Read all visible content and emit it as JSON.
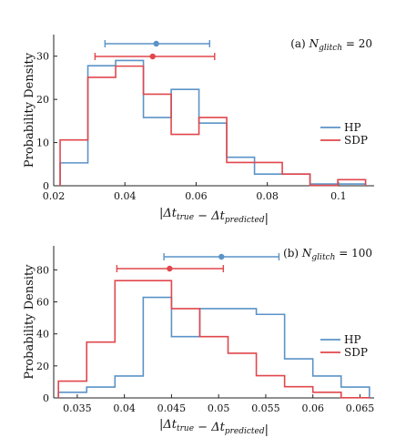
{
  "colors": {
    "HP": "#5b93c7",
    "SDP": "#e0474c"
  },
  "chart_data": [
    {
      "type": "histogram",
      "panel": "a",
      "annotation": "(a) N_glitch = 20",
      "xlabel": "|Δt_true − Δt_predicted|",
      "ylabel": "Probability Density",
      "xlim": [
        0.02,
        0.11
      ],
      "ylim": [
        0,
        35
      ],
      "xticks": [
        0.02,
        0.04,
        0.06,
        0.08,
        0.1
      ],
      "xtick_labels": [
        "0.02",
        "0.04",
        "0.06",
        "0.08",
        "0.1"
      ],
      "yticks": [
        0,
        10,
        20,
        30
      ],
      "ytick_labels": [
        "0",
        "10",
        "20",
        "30"
      ],
      "legend_position": "right",
      "series": [
        {
          "name": "HP",
          "edges": [
            0.0218,
            0.0296,
            0.0374,
            0.0452,
            0.053,
            0.0608,
            0.0686,
            0.0764,
            0.0842,
            0.092,
            0.0998,
            0.1076
          ],
          "values": [
            5.3,
            27.8,
            29.0,
            15.8,
            22.3,
            14.5,
            6.6,
            2.7,
            2.7,
            0.4,
            0.4
          ],
          "mean": 0.0488,
          "err_low": 0.0344,
          "err_high": 0.0638
        },
        {
          "name": "SDP",
          "edges": [
            0.0218,
            0.0296,
            0.0374,
            0.0452,
            0.053,
            0.0608,
            0.0686,
            0.0764,
            0.0842,
            0.092,
            0.0998,
            0.1076
          ],
          "values": [
            10.6,
            25.1,
            27.7,
            21.2,
            11.9,
            15.8,
            5.4,
            5.4,
            2.7,
            0.1,
            1.4
          ],
          "mean": 0.0478,
          "err_low": 0.0316,
          "err_high": 0.0652
        }
      ]
    },
    {
      "type": "histogram",
      "panel": "b",
      "annotation": "(b) N_glitch = 100",
      "xlabel": "|Δt_true − Δt_predicted|",
      "ylabel": "Probability Density",
      "xlim": [
        0.0325,
        0.0665
      ],
      "ylim": [
        0,
        95
      ],
      "xticks": [
        0.035,
        0.04,
        0.045,
        0.05,
        0.055,
        0.06,
        0.065
      ],
      "xtick_labels": [
        "0.035",
        "0.04",
        "0.045",
        "0.05",
        "0.055",
        "0.06",
        "0.065"
      ],
      "yticks": [
        0,
        20,
        40,
        60,
        80
      ],
      "ytick_labels": [
        "0",
        "20",
        "40",
        "60",
        "80"
      ],
      "legend_position": "right",
      "series": [
        {
          "name": "HP",
          "edges": [
            0.033,
            0.036,
            0.039,
            0.042,
            0.045,
            0.048,
            0.051,
            0.054,
            0.057,
            0.06,
            0.063,
            0.066
          ],
          "values": [
            3.5,
            6.8,
            13.7,
            62.8,
            38.3,
            55.8,
            55.8,
            52.2,
            24.4,
            13.7,
            6.8
          ],
          "mean": 0.0503,
          "err_low": 0.0442,
          "err_high": 0.0564
        },
        {
          "name": "SDP",
          "edges": [
            0.033,
            0.036,
            0.039,
            0.042,
            0.045,
            0.048,
            0.051,
            0.054,
            0.057,
            0.06,
            0.063,
            0.066
          ],
          "values": [
            10.5,
            34.9,
            73.3,
            73.3,
            55.8,
            38.3,
            27.9,
            13.9,
            7.0,
            3.5,
            0.1
          ],
          "mean": 0.0448,
          "err_low": 0.0392,
          "err_high": 0.0505
        }
      ]
    }
  ]
}
